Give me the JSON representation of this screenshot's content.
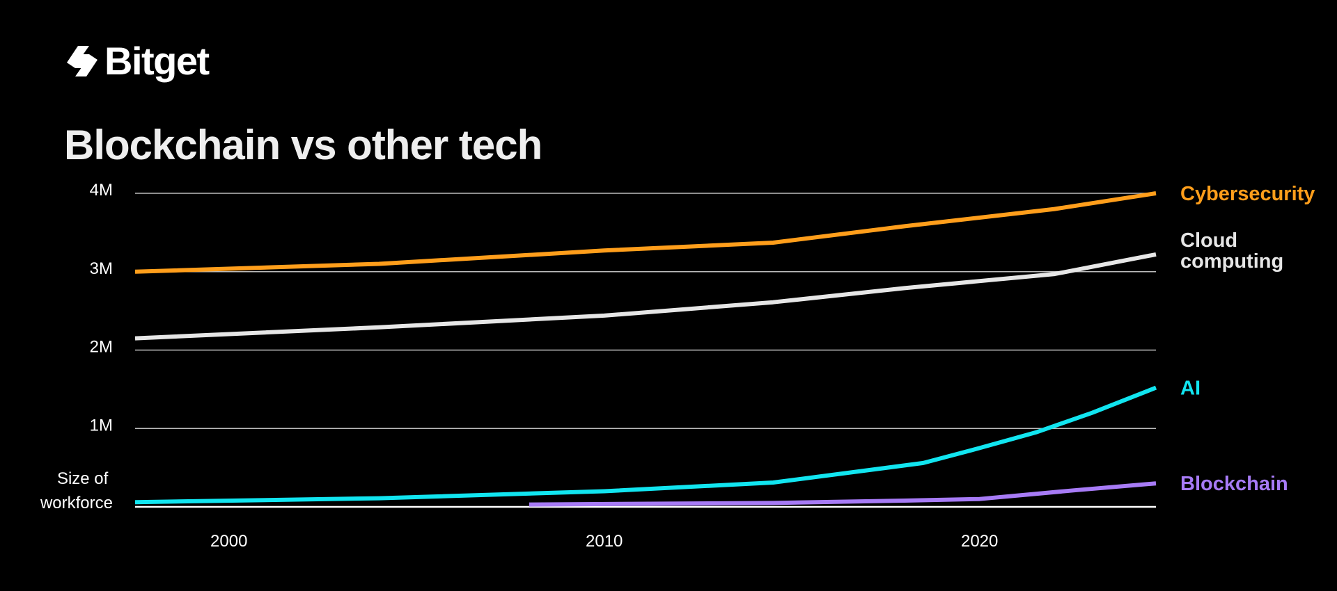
{
  "brand": {
    "name": "Bitget"
  },
  "chart_data": {
    "type": "line",
    "title": "Blockchain vs other tech",
    "ylabel": "Size of workforce",
    "xlabel": "",
    "xlim": [
      1997.5,
      2024.7
    ],
    "ylim": [
      0,
      4000000
    ],
    "grid": true,
    "x_ticks": [
      {
        "value": 2000,
        "label": "2000"
      },
      {
        "value": 2010,
        "label": "2010"
      },
      {
        "value": 2020,
        "label": "2020"
      }
    ],
    "y_ticks": [
      {
        "value": 1000000,
        "label": "1M"
      },
      {
        "value": 2000000,
        "label": "2M"
      },
      {
        "value": 3000000,
        "label": "3M"
      },
      {
        "value": 4000000,
        "label": "4M"
      }
    ],
    "series": [
      {
        "name": "Cybersecurity",
        "label": "Cybersecurity",
        "color": "#FF9E1B",
        "points": [
          [
            1997.5,
            3000000
          ],
          [
            2004,
            3100000
          ],
          [
            2010,
            3270000
          ],
          [
            2014.5,
            3370000
          ],
          [
            2018,
            3580000
          ],
          [
            2022,
            3800000
          ],
          [
            2024.7,
            4000000
          ]
        ]
      },
      {
        "name": "Cloud computing",
        "label": [
          "Cloud",
          "computing"
        ],
        "color": "#E6E6E6",
        "points": [
          [
            1997.5,
            2150000
          ],
          [
            2004,
            2290000
          ],
          [
            2010,
            2440000
          ],
          [
            2014.5,
            2610000
          ],
          [
            2018,
            2790000
          ],
          [
            2022,
            2970000
          ],
          [
            2024.7,
            3220000
          ]
        ]
      },
      {
        "name": "AI",
        "label": "AI",
        "color": "#11E5F0",
        "points": [
          [
            1997.5,
            60000
          ],
          [
            2004,
            110000
          ],
          [
            2010,
            200000
          ],
          [
            2014.5,
            310000
          ],
          [
            2018.5,
            560000
          ],
          [
            2020,
            750000
          ],
          [
            2021.5,
            950000
          ],
          [
            2023,
            1200000
          ],
          [
            2024.7,
            1520000
          ]
        ]
      },
      {
        "name": "Blockchain",
        "label": "Blockchain",
        "color": "#A77BF6",
        "points": [
          [
            2008,
            30000
          ],
          [
            2014.5,
            50000
          ],
          [
            2018,
            80000
          ],
          [
            2020,
            100000
          ],
          [
            2022.5,
            210000
          ],
          [
            2024.7,
            300000
          ]
        ]
      }
    ]
  }
}
